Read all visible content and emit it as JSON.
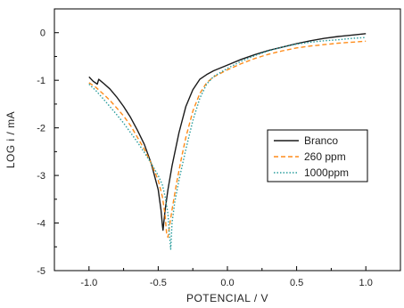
{
  "chart_data": {
    "type": "line",
    "title": "",
    "xlabel": "POTENCIAL / V",
    "ylabel": "LOG i / mA",
    "xlim": [
      -1.25,
      1.25
    ],
    "ylim": [
      -5,
      0.5
    ],
    "xticks": [
      -1.0,
      -0.5,
      0.0,
      0.5,
      1.0
    ],
    "xtick_labels": [
      "-1.0",
      "-0.5",
      "0.0",
      "0.5",
      "1.0"
    ],
    "yticks": [
      0,
      -1,
      -2,
      -3,
      -4,
      -5
    ],
    "ytick_labels": [
      "0",
      "-1",
      "-2",
      "-3",
      "-4",
      "-5"
    ],
    "grid": false,
    "legend_position": "center-right",
    "series": [
      {
        "name": "Branco",
        "color": "#1a1a1a",
        "dash": "solid",
        "x": [
          -1.0,
          -0.97,
          -0.94,
          -0.93,
          -0.9,
          -0.85,
          -0.8,
          -0.75,
          -0.7,
          -0.65,
          -0.6,
          -0.55,
          -0.5,
          -0.48,
          -0.47,
          -0.465,
          -0.46,
          -0.45,
          -0.43,
          -0.4,
          -0.35,
          -0.3,
          -0.25,
          -0.2,
          -0.15,
          -0.1,
          0.0,
          0.1,
          0.2,
          0.3,
          0.4,
          0.5,
          0.6,
          0.7,
          0.8,
          0.9,
          1.0
        ],
        "y": [
          -0.93,
          -1.02,
          -1.08,
          -0.98,
          -1.05,
          -1.18,
          -1.35,
          -1.55,
          -1.78,
          -2.05,
          -2.35,
          -2.75,
          -3.3,
          -3.72,
          -4.05,
          -4.15,
          -4.0,
          -3.72,
          -3.3,
          -2.8,
          -2.1,
          -1.55,
          -1.2,
          -0.98,
          -0.88,
          -0.8,
          -0.68,
          -0.56,
          -0.46,
          -0.37,
          -0.3,
          -0.23,
          -0.17,
          -0.12,
          -0.08,
          -0.05,
          -0.02
        ]
      },
      {
        "name": "260 ppm",
        "color": "#ff8c1a",
        "dash": "5,3",
        "x": [
          -1.0,
          -0.95,
          -0.9,
          -0.85,
          -0.8,
          -0.75,
          -0.7,
          -0.65,
          -0.6,
          -0.55,
          -0.5,
          -0.47,
          -0.45,
          -0.44,
          -0.43,
          -0.42,
          -0.4,
          -0.37,
          -0.33,
          -0.3,
          -0.25,
          -0.2,
          -0.15,
          -0.1,
          0.0,
          0.1,
          0.2,
          0.3,
          0.4,
          0.5,
          0.6,
          0.7,
          0.8,
          0.9,
          1.0
        ],
        "y": [
          -1.05,
          -1.15,
          -1.28,
          -1.42,
          -1.58,
          -1.75,
          -1.95,
          -2.2,
          -2.45,
          -2.75,
          -3.1,
          -3.45,
          -3.85,
          -4.2,
          -4.3,
          -4.1,
          -3.72,
          -3.2,
          -2.6,
          -2.2,
          -1.65,
          -1.28,
          -1.05,
          -0.93,
          -0.78,
          -0.65,
          -0.54,
          -0.45,
          -0.38,
          -0.32,
          -0.28,
          -0.25,
          -0.22,
          -0.2,
          -0.18
        ]
      },
      {
        "name": "1000ppm",
        "color": "#2a9d9d",
        "dash": "1.5,2",
        "x": [
          -1.0,
          -0.95,
          -0.9,
          -0.85,
          -0.8,
          -0.75,
          -0.7,
          -0.65,
          -0.6,
          -0.55,
          -0.5,
          -0.47,
          -0.45,
          -0.43,
          -0.42,
          -0.41,
          -0.405,
          -0.4,
          -0.38,
          -0.35,
          -0.3,
          -0.25,
          -0.2,
          -0.15,
          -0.1,
          0.0,
          0.1,
          0.2,
          0.3,
          0.4,
          0.5,
          0.6,
          0.7,
          0.8,
          0.9,
          1.0
        ],
        "y": [
          -1.08,
          -1.22,
          -1.38,
          -1.55,
          -1.72,
          -1.9,
          -2.1,
          -2.3,
          -2.52,
          -2.75,
          -3.0,
          -3.2,
          -3.45,
          -3.8,
          -4.2,
          -4.55,
          -4.3,
          -4.0,
          -3.55,
          -3.1,
          -2.45,
          -1.85,
          -1.38,
          -1.08,
          -0.92,
          -0.75,
          -0.6,
          -0.48,
          -0.38,
          -0.3,
          -0.24,
          -0.2,
          -0.17,
          -0.15,
          -0.12,
          -0.1
        ]
      }
    ]
  }
}
